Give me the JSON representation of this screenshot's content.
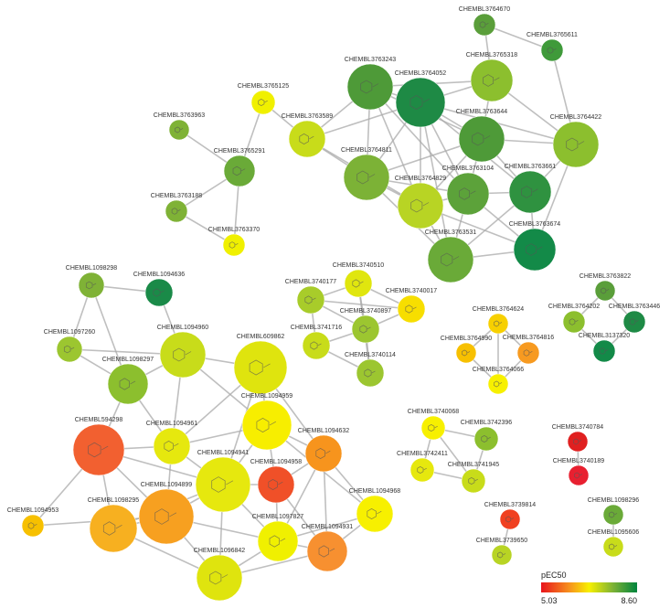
{
  "nodes": [
    {
      "label": "CHEMBL3764670",
      "color": "#5a9e3a"
    },
    {
      "label": "CHEMBL3765611",
      "color": "#3f9a3a"
    },
    {
      "label": "CHEMBL3763243",
      "color": "#4e9a38"
    },
    {
      "label": "CHEMBL3764052",
      "color": "#1e8a45"
    },
    {
      "label": "CHEMBL3765318",
      "color": "#8cbf2e"
    },
    {
      "label": "CHEMBL3765125",
      "color": "#f0f000"
    },
    {
      "label": "CHEMBL3763963",
      "color": "#7fb236"
    },
    {
      "label": "CHEMBL3763589",
      "color": "#c8dc1a"
    },
    {
      "label": "CHEMBL3763644",
      "color": "#4e9a38"
    },
    {
      "label": "CHEMBL3764422",
      "color": "#8cbf2e"
    },
    {
      "label": "CHEMBL3765291",
      "color": "#6aaa38"
    },
    {
      "label": "CHEMBL3764811",
      "color": "#7cb236"
    },
    {
      "label": "CHEMBL3763104",
      "color": "#5ca23a"
    },
    {
      "label": "CHEMBL3763661",
      "color": "#2f9240"
    },
    {
      "label": "CHEMBL3764829",
      "color": "#b8d424"
    },
    {
      "label": "CHEMBL3763188",
      "color": "#7fb236"
    },
    {
      "label": "CHEMBL3763370",
      "color": "#f0f000"
    },
    {
      "label": "CHEMBL3763531",
      "color": "#6aaa38"
    },
    {
      "label": "CHEMBL3763674",
      "color": "#138a48"
    },
    {
      "label": "CHEMBL1098298",
      "color": "#7fb236"
    },
    {
      "label": "CHEMBL1094636",
      "color": "#1a8a48"
    },
    {
      "label": "CHEMBL3740177",
      "color": "#a8cc2a"
    },
    {
      "label": "CHEMBL3740510",
      "color": "#e0e60e"
    },
    {
      "label": "CHEMBL3740017",
      "color": "#f7de00"
    },
    {
      "label": "CHEMBL3740897",
      "color": "#9cc630"
    },
    {
      "label": "CHEMBL3741716",
      "color": "#c8dc1a"
    },
    {
      "label": "CHEMBL3740114",
      "color": "#9cc630"
    },
    {
      "label": "CHEMBL3763822",
      "color": "#5a9e3a"
    },
    {
      "label": "CHEMBL3764202",
      "color": "#8cbf2e"
    },
    {
      "label": "CHEMBL3763446",
      "color": "#1e8a45"
    },
    {
      "label": "CHEMBL3137320",
      "color": "#138a48"
    },
    {
      "label": "CHEMBL3764624",
      "color": "#f7d000"
    },
    {
      "label": "CHEMBL3764990",
      "color": "#f7c000"
    },
    {
      "label": "CHEMBL3764816",
      "color": "#f79a20"
    },
    {
      "label": "CHEMBL3764066",
      "color": "#f7f000"
    },
    {
      "label": "CHEMBL1097260",
      "color": "#9cc630"
    },
    {
      "label": "CHEMBL1094960",
      "color": "#c8dc1a"
    },
    {
      "label": "CHEMBL609862",
      "color": "#dfe40e"
    },
    {
      "label": "CHEMBL1098297",
      "color": "#8cbf2e"
    },
    {
      "label": "CHEMBL594298",
      "color": "#f26030"
    },
    {
      "label": "CHEMBL1094961",
      "color": "#e6e80e"
    },
    {
      "label": "CHEMBL1094959",
      "color": "#f7ee00"
    },
    {
      "label": "CHEMBL1094632",
      "color": "#f7941d"
    },
    {
      "label": "CHEMBL1094941",
      "color": "#e6e80e"
    },
    {
      "label": "CHEMBL1094958",
      "color": "#f05028"
    },
    {
      "label": "CHEMBL1094899",
      "color": "#f7a020"
    },
    {
      "label": "CHEMBL1098295",
      "color": "#f7b020"
    },
    {
      "label": "CHEMBL1094968",
      "color": "#f7f000"
    },
    {
      "label": "CHEMBL1097827",
      "color": "#f0f000"
    },
    {
      "label": "CHEMBL1094931",
      "color": "#f79030"
    },
    {
      "label": "CHEMBL1096842",
      "color": "#dfe40e"
    },
    {
      "label": "CHEMBL1094953",
      "color": "#f7c000"
    },
    {
      "label": "CHEMBL3740068",
      "color": "#f7f000"
    },
    {
      "label": "CHEMBL3742396",
      "color": "#8cbf2e"
    },
    {
      "label": "CHEMBL3742411",
      "color": "#e6e80e"
    },
    {
      "label": "CHEMBL3741945",
      "color": "#c8dc1a"
    },
    {
      "label": "CHEMBL3740784",
      "color": "#e02020"
    },
    {
      "label": "CHEMBL3740189",
      "color": "#e82030"
    },
    {
      "label": "CHEMBL3739814",
      "color": "#f04020"
    },
    {
      "label": "CHEMBL3739650",
      "color": "#b8d424"
    },
    {
      "label": "CHEMBL1098296",
      "color": "#6aaa38"
    },
    {
      "label": "CHEMBL1095606",
      "color": "#c8dc1a"
    }
  ],
  "colorbar": {
    "title": "pEC50",
    "min": 5.03,
    "max": {
      "value": 8.6,
      "label": "8.60"
    }
  }
}
